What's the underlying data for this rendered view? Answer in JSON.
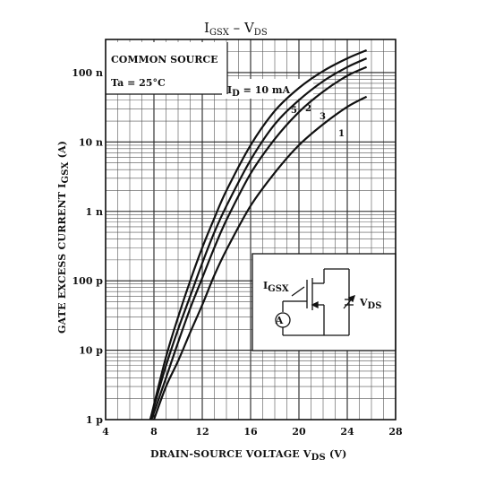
{
  "chart_data": {
    "type": "line",
    "title": {
      "main": "I",
      "sub1": "GSX",
      "sep": " – ",
      "main2": "V",
      "sub2": "DS"
    },
    "xlabel": {
      "main": "DRAIN-SOURCE VOLTAGE  V",
      "sub": "DS",
      "unit": " (V)"
    },
    "ylabel": {
      "main": "GATE EXCESS CURRENT  I",
      "sub": "GSX",
      "unit": "  (A)"
    },
    "x_ticks": [
      "4",
      "8",
      "12",
      "16",
      "20",
      "24",
      "28"
    ],
    "xlim": [
      4,
      28
    ],
    "y_ticks": [
      "1 p",
      "10 p",
      "100 p",
      "1 n",
      "10 n",
      "100 n"
    ],
    "ylim": [
      1e-12,
      3e-07
    ],
    "y_scale": "log",
    "grid": true,
    "annotations": {
      "common_source": "COMMON SOURCE",
      "ta": "Ta = 25°C",
      "id_main": "I",
      "id_sub": "D",
      "id_value": " = 10 mA",
      "inset_igsx_main": "I",
      "inset_igsx_sub": "GSX",
      "inset_vds_main": "V",
      "inset_vds_sub": "DS",
      "ammeter": "A"
    },
    "series": [
      {
        "name": "5",
        "x": [
          7.7,
          9,
          10,
          11,
          12,
          13,
          14,
          16,
          18,
          20,
          22,
          24,
          25.6
        ],
        "y": [
          1e-12,
          8e-12,
          3e-11,
          1e-10,
          3e-10,
          8e-10,
          2e-09,
          9e-09,
          2.8e-08,
          6e-08,
          1.05e-07,
          1.6e-07,
          2.1e-07
        ]
      },
      {
        "name": "3",
        "x": [
          7.7,
          9,
          10,
          11,
          12,
          13,
          14,
          16,
          18,
          20,
          22,
          24,
          25.6
        ],
        "y": [
          1e-12,
          6e-12,
          2e-11,
          6e-11,
          1.8e-10,
          5e-10,
          1.2e-09,
          5.5e-09,
          1.8e-08,
          4e-08,
          7.5e-08,
          1.2e-07,
          1.6e-07
        ]
      },
      {
        "name": "2",
        "x": [
          7.8,
          9,
          10,
          11,
          12,
          13,
          14,
          16,
          18,
          20,
          22,
          24,
          25.6
        ],
        "y": [
          1e-12,
          4e-12,
          1.3e-11,
          4e-11,
          1.1e-10,
          3e-10,
          7.5e-10,
          3.5e-09,
          1.1e-08,
          2.7e-08,
          5.3e-08,
          9e-08,
          1.2e-07
        ]
      },
      {
        "name": "1",
        "x": [
          8,
          9,
          10,
          11,
          12,
          13,
          14,
          16,
          18,
          20,
          22,
          24,
          25.6
        ],
        "y": [
          1e-12,
          3e-12,
          7e-12,
          1.8e-11,
          4.5e-11,
          1.2e-10,
          2.8e-10,
          1.2e-09,
          3.6e-09,
          9e-09,
          1.8e-08,
          3.2e-08,
          4.5e-08
        ]
      }
    ]
  }
}
